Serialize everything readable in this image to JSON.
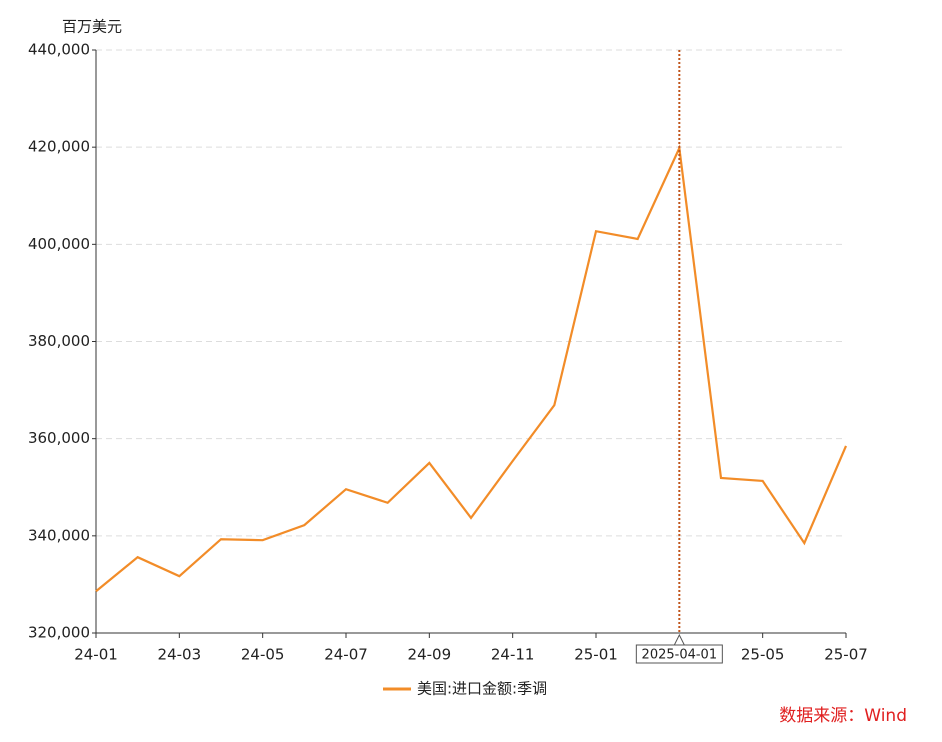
{
  "chart_data": {
    "type": "line",
    "y_axis_label": "百万美元",
    "categories": [
      "24-01",
      null,
      "24-03",
      null,
      "24-05",
      null,
      "24-07",
      null,
      "24-09",
      null,
      "24-11",
      null,
      "25-01",
      null,
      null,
      null,
      "25-05",
      null,
      "25-07"
    ],
    "series": [
      {
        "name": "美国:进口金额:季调",
        "color": "#f28c28",
        "values": [
          328600,
          335600,
          331700,
          339300,
          339100,
          342200,
          349600,
          346800,
          355000,
          343700,
          355400,
          366900,
          402700,
          401100,
          419800,
          351900,
          351300,
          338500,
          358500
        ]
      }
    ],
    "ylim": [
      320000,
      440000
    ],
    "yticks": [
      {
        "value": 320000,
        "label": "320,000"
      },
      {
        "value": 340000,
        "label": "340,000"
      },
      {
        "value": 360000,
        "label": "360,000"
      },
      {
        "value": 380000,
        "label": "380,000"
      },
      {
        "value": 400000,
        "label": "400,000"
      },
      {
        "value": 420000,
        "label": "420,000"
      },
      {
        "value": 440000,
        "label": "440,000"
      }
    ],
    "grid": true,
    "crosshair": {
      "index": 14,
      "label": "2025-04-01",
      "color": "#c0541a"
    },
    "source": "数据来源：Wind",
    "source_color": "#e02020"
  }
}
